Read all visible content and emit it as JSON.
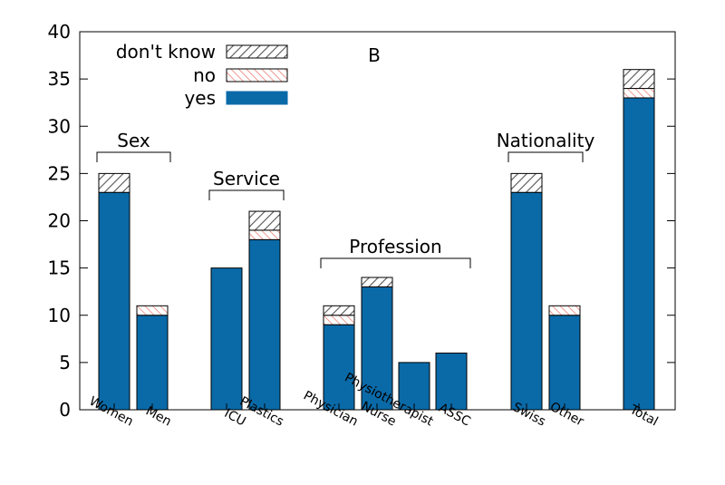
{
  "chart_data": {
    "type": "bar",
    "stacked": true,
    "panel_label": "B",
    "ylim": [
      0,
      40
    ],
    "yticks": [
      0,
      5,
      10,
      15,
      20,
      25,
      30,
      35,
      40
    ],
    "grid": false,
    "legend_position": "top-left",
    "categories": [
      "Women",
      "Men",
      "ICU",
      "Plastics",
      "Physician",
      "Nurse",
      "Physiotherapist",
      "ASSC",
      "Swiss",
      "Other",
      "Total"
    ],
    "series": [
      {
        "name": "yes",
        "color": "#0a6aa8",
        "values": [
          23,
          10,
          15,
          18,
          9,
          13,
          5,
          6,
          23,
          10,
          33
        ]
      },
      {
        "name": "no",
        "color": "#e8796f",
        "values": [
          0,
          1,
          0,
          1,
          1,
          0,
          0,
          0,
          0,
          1,
          1
        ]
      },
      {
        "name": "don't know",
        "color": "#555555",
        "values": [
          2,
          0,
          0,
          2,
          1,
          1,
          0,
          0,
          2,
          0,
          2
        ]
      }
    ],
    "legend_order": [
      "don't know",
      "no",
      "yes"
    ],
    "groups": [
      {
        "label": "Sex",
        "categories": [
          "Women",
          "Men"
        ]
      },
      {
        "label": "Service",
        "categories": [
          "ICU",
          "Plastics"
        ]
      },
      {
        "label": "Profession",
        "categories": [
          "Physician",
          "Nurse",
          "Physiotherapist",
          "ASSC"
        ]
      },
      {
        "label": "Nationality",
        "categories": [
          "Swiss",
          "Other"
        ]
      }
    ]
  }
}
